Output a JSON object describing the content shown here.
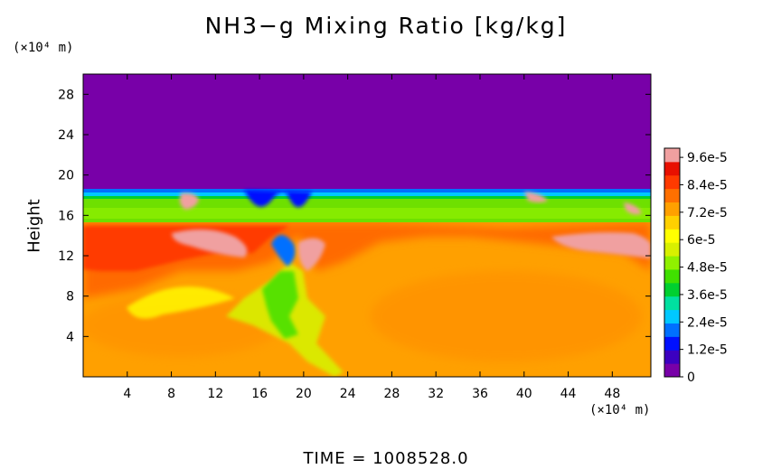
{
  "title": "NH3−g Mixing Ratio [kg/kg]",
  "footer": "TIME  =  1008528.0",
  "chart_data": {
    "type": "heatmap",
    "title": "NH3−g Mixing Ratio [kg/kg]",
    "xlabel": "",
    "x_unit": "(×10⁴ m)",
    "ylabel": "Height",
    "y_unit": "(×10⁴ m)",
    "xlim": [
      0,
      51.5
    ],
    "ylim": [
      0,
      30
    ],
    "x_ticks": [
      4,
      8,
      12,
      16,
      20,
      24,
      28,
      32,
      36,
      40,
      44,
      48
    ],
    "y_ticks": [
      4,
      8,
      12,
      16,
      20,
      24,
      28
    ],
    "colorbar": {
      "labels": [
        "9.6e-5",
        "8.4e-5",
        "7.2e-5",
        "6e-5",
        "4.8e-5",
        "3.6e-5",
        "2.4e-5",
        "1.2e-5",
        "0"
      ],
      "label_values": [
        9.6e-05,
        8.4e-05,
        7.2e-05,
        6e-05,
        4.8e-05,
        3.6e-05,
        2.4e-05,
        1.2e-05,
        0
      ],
      "min": 0,
      "max": 0.0001,
      "colors": [
        "#7800a8",
        "#3c00c0",
        "#0010ff",
        "#0070ff",
        "#00c8ff",
        "#00e0a0",
        "#00d030",
        "#40e000",
        "#90f000",
        "#d8f000",
        "#ffff00",
        "#ffd000",
        "#ffa000",
        "#ff7000",
        "#ff3a00",
        "#e81000",
        "#f0a0a0"
      ]
    },
    "layers": {
      "upper_layer_value": 0,
      "upper_boundary_height": 19,
      "green_band_value": 5.4e-05,
      "green_band_range": [
        15.5,
        19
      ],
      "lower_region_typical_value": 8e-05,
      "peak_value": 9.8e-05
    }
  },
  "colors": {
    "background": "#ffffff",
    "upper_layer": "#7800a8",
    "green_band": "#6ee000",
    "lower_region": "#ffa000",
    "highlight": "#f0a0a0"
  }
}
